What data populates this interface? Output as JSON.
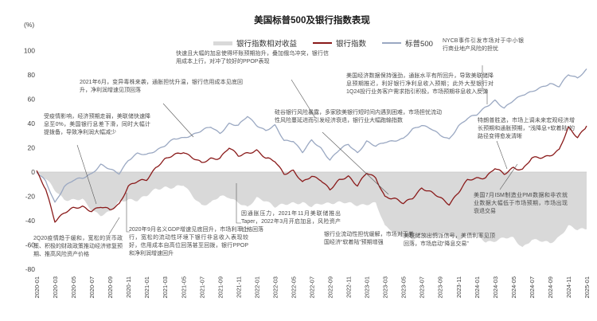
{
  "title": "美国标普500及银行指数表现",
  "y_axis": {
    "unit": "(%)",
    "ticks": [
      100,
      80,
      60,
      40,
      20,
      0,
      -20,
      -40,
      -60,
      -80
    ]
  },
  "legend": [
    {
      "label": "银行指数相对收益",
      "type": "area",
      "color": "#d9d9d9"
    },
    {
      "label": "银行指数",
      "type": "line",
      "color": "#8a1a1a"
    },
    {
      "label": "标普500",
      "type": "line",
      "color": "#9aa8c2"
    }
  ],
  "annotations": [
    {
      "id": "covid-2020",
      "text": "受疫情影响，经济预期走弱，美联储快速降息至0%，美国银行息差下滑，同时大幅计提拨备，导致净利润大幅减少"
    },
    {
      "id": "jun-2021",
      "text": "2021年6月，变异毒株来袭，通胀担忧升温，银行信用成本见底回升，净利润增速见顶回落"
    },
    {
      "id": "rate-hike-2022",
      "text": "快速且大幅的加息使得坏账预期抬升，叠加俄乌冲突，银行信用成本上行，对冲了较好的PPOP表现"
    },
    {
      "id": "svb-2023",
      "text": "硅谷银行风险暴露，多家欧美银行短时间内遇到困难，市场担忧流动性风险蔓延进而引发经济衰退，银行业大幅跑输指数"
    },
    {
      "id": "strong-data-2024",
      "text": "美国经济数据保持强劲，通胀水平有所回升，导致美联储降息预期推迟，利好银行净利息收入预期；此外大型银行对1Q24投行业务客户需求指引积极，市场预期非息收入反弹"
    },
    {
      "id": "nycb",
      "text": "NYCB事件引发市场对于中小银行商业地产风险的担忧"
    },
    {
      "id": "trump-win",
      "text": "特朗普胜选，市场上调未来宏观经济增长预期和通胀预期，“浅降息+软着陆”的路径变得愈发清晰"
    },
    {
      "id": "ism-pmi",
      "text": "美国7月ISM制造业PMI数据和非农就业数据大幅低于市场预期，市场出现衰退交易"
    },
    {
      "id": "fed-dovish",
      "text": "美联储放出鸽派信号，美债利率见顶回落，市场启动“降息交易”"
    },
    {
      "id": "liquidity-ease",
      "text": "银行业流动性担忧缓解，市场对于美国经济“软着陆”预期增强"
    },
    {
      "id": "taper",
      "text": "因通胀压力，2021年11月美联储推出Taper，2022年3月开启加息，风险资产价格回落"
    },
    {
      "id": "gdp-rebound-2020",
      "text": "2020年9月名义GDP增速见底回升，市场利率上行，宽松的流动性环境下银行非息收入表现较好，信用成本自高位回落甚至回拨，银行PPOP和净利润增速回升"
    },
    {
      "id": "2q20-recovery",
      "text": "2Q20疫情趋于缓和，宽松的货币政策、积极的财政政策推动经济修复预期、推高风险资产价格"
    }
  ],
  "chart_data": {
    "type": "line",
    "title": "美国标普500及银行指数表现",
    "ylabel": "(%)",
    "ylim": [
      -80,
      100
    ],
    "grid": false,
    "legend_position": "top",
    "x_ticks": [
      "2020-01",
      "2020-03",
      "2020-05",
      "2020-07",
      "2020-09",
      "2020-11",
      "2021-01",
      "2021-03",
      "2021-05",
      "2021-07",
      "2021-09",
      "2021-11",
      "2022-01",
      "2022-03",
      "2022-05",
      "2022-07",
      "2022-09",
      "2022-11",
      "2023-01",
      "2023-03",
      "2023-05",
      "2023-07",
      "2023-09",
      "2023-11",
      "2024-01",
      "2024-03",
      "2024-05",
      "2024-07",
      "2024-09",
      "2024-11",
      "2025-01"
    ],
    "x": [
      "2020-01",
      "2020-02",
      "2020-03",
      "2020-04",
      "2020-05",
      "2020-06",
      "2020-07",
      "2020-08",
      "2020-09",
      "2020-10",
      "2020-11",
      "2020-12",
      "2021-01",
      "2021-02",
      "2021-03",
      "2021-04",
      "2021-05",
      "2021-06",
      "2021-07",
      "2021-08",
      "2021-09",
      "2021-10",
      "2021-11",
      "2021-12",
      "2022-01",
      "2022-02",
      "2022-03",
      "2022-04",
      "2022-05",
      "2022-06",
      "2022-07",
      "2022-08",
      "2022-09",
      "2022-10",
      "2022-11",
      "2022-12",
      "2023-01",
      "2023-02",
      "2023-03",
      "2023-04",
      "2023-05",
      "2023-06",
      "2023-07",
      "2023-08",
      "2023-09",
      "2023-10",
      "2023-11",
      "2023-12",
      "2024-01",
      "2024-02",
      "2024-03",
      "2024-04",
      "2024-05",
      "2024-06",
      "2024-07",
      "2024-08",
      "2024-09",
      "2024-10",
      "2024-11",
      "2024-12",
      "2025-01"
    ],
    "series": [
      {
        "name": "银行指数相对收益",
        "style": "area",
        "color": "#d9d9d9",
        "values": [
          0,
          -6,
          -15,
          -22,
          -23,
          -23,
          -31,
          -35,
          -33,
          -25,
          -22,
          -23,
          -20,
          -14,
          -12,
          -13,
          -11,
          -19,
          -27,
          -26,
          -20,
          -20,
          -25,
          -30,
          -21,
          -23,
          -29,
          -27,
          -25,
          -25,
          -29,
          -26,
          -25,
          -25,
          -26,
          -27,
          -26,
          -26,
          -45,
          -48,
          -53,
          -56,
          -52,
          -53,
          -51,
          -53,
          -55,
          -51,
          -52,
          -58,
          -56,
          -54,
          -55,
          -62,
          -55,
          -57,
          -59,
          -53,
          -44,
          -48,
          -47
        ]
      },
      {
        "name": "银行指数",
        "style": "line",
        "color": "#8a1a1a",
        "values": [
          0,
          -14,
          -40,
          -34,
          -30,
          -28,
          -32,
          -29,
          -31,
          -26,
          -12,
          -8,
          -6,
          4,
          10,
          14,
          17,
          12,
          7,
          11,
          12,
          20,
          13,
          16,
          18,
          11,
          9,
          -1,
          1,
          -9,
          -3,
          -6,
          -15,
          -7,
          -3,
          -11,
          -1,
          -5,
          -20,
          -22,
          -26,
          -21,
          -13,
          -17,
          -21,
          -26,
          -17,
          -7,
          -5,
          -4,
          3,
          -2,
          4,
          2,
          11,
          12,
          14,
          18,
          36,
          29,
          38
        ]
      },
      {
        "name": "标普500",
        "style": "line",
        "color": "#9aa8c2",
        "values": [
          0,
          -8,
          -25,
          -12,
          -7,
          -5,
          -1,
          6,
          2,
          -1,
          10,
          15,
          14,
          18,
          22,
          27,
          28,
          31,
          34,
          37,
          32,
          40,
          38,
          46,
          39,
          34,
          38,
          26,
          26,
          16,
          26,
          20,
          10,
          18,
          23,
          16,
          25,
          21,
          25,
          26,
          27,
          35,
          39,
          36,
          30,
          27,
          38,
          44,
          47,
          54,
          59,
          52,
          59,
          64,
          66,
          69,
          73,
          71,
          80,
          77,
          85
        ]
      }
    ]
  }
}
